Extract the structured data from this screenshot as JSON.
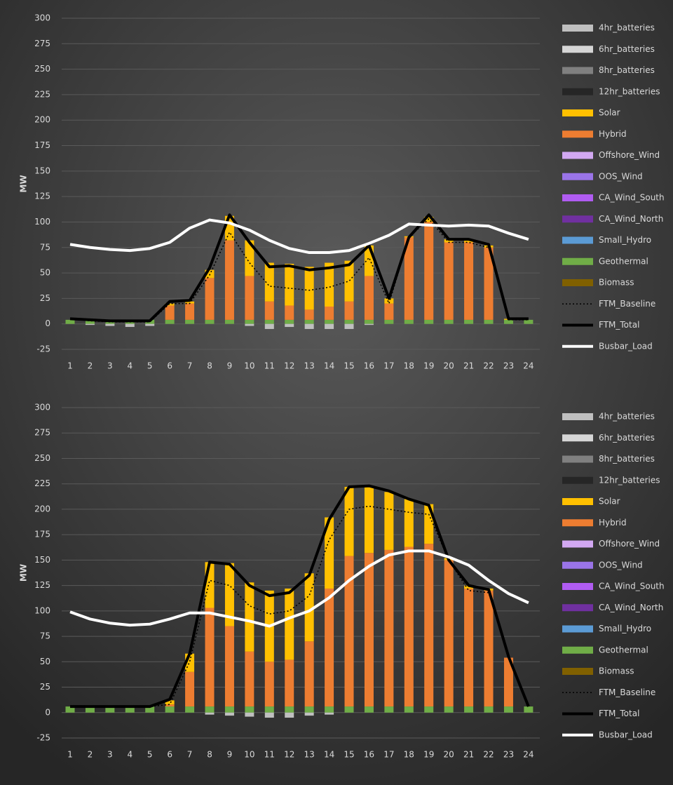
{
  "chart_data": [
    {
      "type": "bar",
      "ylabel": "MW",
      "categories": [
        1,
        2,
        3,
        4,
        5,
        6,
        7,
        8,
        9,
        10,
        11,
        12,
        13,
        14,
        15,
        16,
        17,
        18,
        19,
        20,
        21,
        22,
        23,
        24
      ],
      "ylim": [
        -25,
        300
      ],
      "yticks": [
        -25,
        0,
        25,
        50,
        75,
        100,
        125,
        150,
        175,
        200,
        225,
        250,
        275,
        300
      ],
      "grid": true,
      "series": [
        {
          "name": "4hr_batteries",
          "color": "#bfbfbf",
          "values": [
            0,
            -1,
            -2,
            -3,
            -2,
            0,
            0,
            0,
            0,
            -2,
            -5,
            -3,
            -5,
            -5,
            -5,
            -1,
            0,
            0,
            0,
            0,
            0,
            0,
            0,
            0
          ]
        },
        {
          "name": "6hr_batteries",
          "color": "#d6d6d6",
          "values": [
            0,
            0,
            0,
            0,
            0,
            0,
            0,
            0,
            0,
            0,
            0,
            0,
            0,
            0,
            0,
            0,
            0,
            0,
            0,
            0,
            0,
            0,
            0,
            0
          ]
        },
        {
          "name": "8hr_batteries",
          "color": "#808080",
          "values": [
            0,
            0,
            0,
            0,
            0,
            0,
            0,
            0,
            0,
            0,
            0,
            0,
            0,
            0,
            0,
            0,
            0,
            0,
            0,
            0,
            0,
            0,
            0,
            0
          ]
        },
        {
          "name": "12hr_batteries",
          "color": "#262626",
          "values": [
            0,
            0,
            0,
            0,
            0,
            0,
            0,
            0,
            0,
            0,
            0,
            0,
            0,
            0,
            0,
            0,
            0,
            0,
            0,
            0,
            0,
            0,
            0,
            0
          ]
        },
        {
          "name": "Solar",
          "color": "#ffc000",
          "values": [
            0,
            0,
            0,
            0,
            0,
            2,
            2,
            8,
            24,
            35,
            38,
            41,
            42,
            43,
            40,
            30,
            5,
            1,
            5,
            3,
            2,
            2,
            1,
            0
          ]
        },
        {
          "name": "Hybrid",
          "color": "#ed7d31",
          "values": [
            0,
            0,
            0,
            0,
            0,
            14,
            16,
            41,
            78,
            43,
            18,
            14,
            10,
            13,
            18,
            43,
            16,
            81,
            96,
            76,
            76,
            71,
            0,
            0
          ]
        },
        {
          "name": "Offshore_Wind",
          "color": "#d2a8f2",
          "values": [
            0,
            0,
            0,
            0,
            0,
            0,
            0,
            0,
            0,
            0,
            0,
            0,
            0,
            0,
            0,
            0,
            0,
            0,
            0,
            0,
            0,
            0,
            0,
            0
          ]
        },
        {
          "name": "OOS_Wind",
          "color": "#9a74e8",
          "values": [
            0,
            0,
            0,
            0,
            0,
            0,
            0,
            0,
            0,
            0,
            0,
            0,
            0,
            0,
            0,
            0,
            0,
            0,
            0,
            0,
            0,
            0,
            0,
            0
          ]
        },
        {
          "name": "CA_Wind_South",
          "color": "#b05cf2",
          "values": [
            0,
            0,
            0,
            0,
            0,
            0,
            0,
            0,
            0,
            0,
            0,
            0,
            0,
            0,
            0,
            0,
            0,
            0,
            0,
            0,
            0,
            0,
            0,
            0
          ]
        },
        {
          "name": "CA_Wind_North",
          "color": "#7030a0",
          "values": [
            0,
            0,
            0,
            0,
            0,
            0,
            0,
            0,
            0,
            0,
            0,
            0,
            0,
            0,
            0,
            0,
            0,
            0,
            0,
            0,
            0,
            0,
            0,
            0
          ]
        },
        {
          "name": "Small_Hydro",
          "color": "#5b9bd5",
          "values": [
            0,
            0,
            0,
            0,
            0,
            0,
            0,
            0,
            0,
            0,
            0,
            0,
            0,
            0,
            0,
            0,
            0,
            0,
            0,
            0,
            0,
            0,
            0,
            0
          ]
        },
        {
          "name": "Geothermal",
          "color": "#70ad47",
          "values": [
            4,
            4,
            4,
            4,
            4,
            4,
            4,
            4,
            4,
            4,
            4,
            4,
            4,
            4,
            4,
            4,
            4,
            4,
            4,
            4,
            4,
            4,
            4,
            4
          ]
        },
        {
          "name": "Biomass",
          "color": "#806000",
          "values": [
            0,
            0,
            0,
            0,
            0,
            0,
            0,
            0,
            0,
            0,
            0,
            0,
            0,
            0,
            0,
            0,
            0,
            0,
            0,
            0,
            0,
            0,
            0,
            0
          ]
        },
        {
          "name": "FTM_Baseline",
          "color": "#000000",
          "type": "line",
          "dash": "dotted",
          "values": [
            5,
            3,
            2,
            2,
            2,
            20,
            20,
            48,
            90,
            60,
            37,
            35,
            33,
            36,
            42,
            65,
            20,
            85,
            103,
            80,
            80,
            75,
            4,
            4
          ]
        },
        {
          "name": "FTM_Total",
          "color": "#000000",
          "type": "line",
          "values": [
            5,
            4,
            3,
            3,
            3,
            22,
            23,
            55,
            107,
            80,
            56,
            57,
            53,
            55,
            58,
            77,
            25,
            85,
            107,
            83,
            83,
            78,
            5,
            5
          ]
        },
        {
          "name": "Busbar_Load",
          "color": "#ffffff",
          "type": "line",
          "values": [
            78,
            75,
            73,
            72,
            74,
            80,
            94,
            102,
            99,
            92,
            82,
            74,
            70,
            70,
            72,
            79,
            87,
            98,
            97,
            96,
            97,
            96,
            89,
            83
          ]
        }
      ]
    },
    {
      "type": "bar",
      "ylabel": "MW",
      "categories": [
        1,
        2,
        3,
        4,
        5,
        6,
        7,
        8,
        9,
        10,
        11,
        12,
        13,
        14,
        15,
        16,
        17,
        18,
        19,
        20,
        21,
        22,
        23,
        24
      ],
      "ylim": [
        -25,
        300
      ],
      "yticks": [
        -25,
        0,
        25,
        50,
        75,
        100,
        125,
        150,
        175,
        200,
        225,
        250,
        275,
        300
      ],
      "grid": true,
      "series": [
        {
          "name": "4hr_batteries",
          "color": "#bfbfbf",
          "values": [
            0,
            0,
            0,
            0,
            0,
            0,
            0,
            -2,
            -3,
            -4,
            -5,
            -5,
            -3,
            -2,
            0,
            0,
            0,
            0,
            0,
            0,
            0,
            0,
            0,
            0
          ]
        },
        {
          "name": "6hr_batteries",
          "color": "#d6d6d6",
          "values": [
            0,
            0,
            0,
            0,
            0,
            0,
            0,
            0,
            0,
            0,
            0,
            0,
            0,
            0,
            0,
            0,
            0,
            0,
            0,
            0,
            0,
            0,
            0,
            0
          ]
        },
        {
          "name": "8hr_batteries",
          "color": "#808080",
          "values": [
            0,
            0,
            0,
            0,
            0,
            0,
            0,
            0,
            0,
            0,
            0,
            0,
            0,
            0,
            0,
            0,
            0,
            0,
            0,
            0,
            0,
            0,
            0,
            0
          ]
        },
        {
          "name": "12hr_batteries",
          "color": "#262626",
          "values": [
            0,
            0,
            0,
            0,
            0,
            0,
            0,
            0,
            0,
            0,
            0,
            0,
            0,
            0,
            0,
            0,
            0,
            0,
            0,
            0,
            0,
            0,
            0,
            0
          ]
        },
        {
          "name": "Solar",
          "color": "#ffc000",
          "values": [
            0,
            0,
            0,
            0,
            0,
            4,
            18,
            45,
            62,
            68,
            70,
            70,
            67,
            70,
            68,
            66,
            57,
            47,
            39,
            2,
            3,
            2,
            0,
            0
          ]
        },
        {
          "name": "Hybrid",
          "color": "#ed7d31",
          "values": [
            0,
            0,
            0,
            0,
            0,
            2,
            34,
            97,
            79,
            54,
            44,
            46,
            64,
            116,
            148,
            151,
            154,
            157,
            160,
            144,
            116,
            114,
            48,
            0
          ]
        },
        {
          "name": "Offshore_Wind",
          "color": "#d2a8f2",
          "values": [
            0,
            0,
            0,
            0,
            0,
            0,
            0,
            0,
            0,
            0,
            0,
            0,
            0,
            0,
            0,
            0,
            0,
            0,
            0,
            0,
            0,
            0,
            0,
            0
          ]
        },
        {
          "name": "OOS_Wind",
          "color": "#9a74e8",
          "values": [
            0,
            0,
            0,
            0,
            0,
            0,
            0,
            0,
            0,
            0,
            0,
            0,
            0,
            0,
            0,
            0,
            0,
            0,
            0,
            0,
            0,
            0,
            0,
            0
          ]
        },
        {
          "name": "CA_Wind_South",
          "color": "#b05cf2",
          "values": [
            0,
            0,
            0,
            0,
            0,
            0,
            0,
            0,
            0,
            0,
            0,
            0,
            0,
            0,
            0,
            0,
            0,
            0,
            0,
            0,
            0,
            0,
            0,
            0
          ]
        },
        {
          "name": "CA_Wind_North",
          "color": "#7030a0",
          "values": [
            0,
            0,
            0,
            0,
            0,
            0,
            0,
            0,
            0,
            0,
            0,
            0,
            0,
            0,
            0,
            0,
            0,
            0,
            0,
            0,
            0,
            0,
            0,
            0
          ]
        },
        {
          "name": "Small_Hydro",
          "color": "#5b9bd5",
          "values": [
            0,
            0,
            0,
            0,
            0,
            0,
            0,
            0,
            0,
            0,
            0,
            0,
            0,
            0,
            0,
            0,
            0,
            0,
            0,
            0,
            0,
            0,
            0,
            0
          ]
        },
        {
          "name": "Geothermal",
          "color": "#70ad47",
          "values": [
            6,
            6,
            6,
            6,
            6,
            6,
            6,
            6,
            6,
            6,
            6,
            6,
            6,
            6,
            6,
            6,
            6,
            6,
            6,
            6,
            6,
            6,
            6,
            6
          ]
        },
        {
          "name": "Biomass",
          "color": "#806000",
          "values": [
            0,
            0,
            0,
            0,
            0,
            0,
            0,
            0,
            0,
            0,
            0,
            0,
            0,
            0,
            0,
            0,
            0,
            0,
            0,
            0,
            0,
            0,
            0,
            0
          ]
        },
        {
          "name": "FTM_Baseline",
          "color": "#000000",
          "type": "line",
          "dash": "dotted",
          "values": [
            6,
            6,
            6,
            6,
            6,
            8,
            50,
            130,
            125,
            105,
            97,
            100,
            115,
            170,
            200,
            203,
            200,
            197,
            195,
            150,
            120,
            118,
            55,
            6
          ]
        },
        {
          "name": "FTM_Total",
          "color": "#000000",
          "type": "line",
          "values": [
            6,
            6,
            6,
            6,
            6,
            13,
            58,
            148,
            146,
            125,
            115,
            118,
            135,
            190,
            222,
            223,
            218,
            210,
            204,
            150,
            125,
            121,
            55,
            6
          ]
        },
        {
          "name": "Busbar_Load",
          "color": "#ffffff",
          "type": "line",
          "values": [
            99,
            92,
            88,
            86,
            87,
            92,
            98,
            98,
            94,
            90,
            85,
            93,
            100,
            113,
            130,
            144,
            155,
            159,
            159,
            153,
            145,
            130,
            117,
            108
          ]
        }
      ]
    }
  ]
}
